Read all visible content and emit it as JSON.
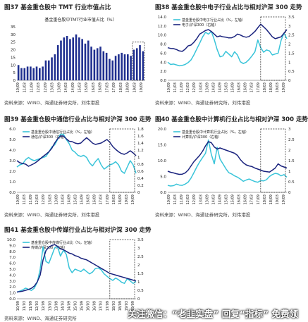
{
  "source_prefix": "资料来源：",
  "panels": [
    {
      "id": "p37",
      "title": "图37 基金重仓股中 TMT 行业市值占比",
      "source": "WIND、海通证券研究所，刘伟港投",
      "colors": {
        "bar": "#1f2f8f"
      },
      "chart_data": {
        "type": "bar",
        "legend": [
          "基金重仓股中TMT行业市值占比（%）"
        ],
        "legend_position": "top",
        "ylim": [
          0,
          35
        ],
        "yticks": [
          0,
          5,
          10,
          15,
          20,
          25,
          30,
          35
        ],
        "categories_labels": [
          "10/09",
          "11/03",
          "11/09",
          "12/03",
          "12/09",
          "13/03",
          "13/09",
          "14/03",
          "14/09",
          "15/03",
          "15/09",
          "16/03",
          "16/09",
          "17/03",
          "17/09",
          "18/03",
          "18/09",
          "19/03",
          "19/09"
        ],
        "values": [
          10,
          8,
          8,
          9,
          9,
          8,
          9,
          8,
          9,
          13,
          13,
          15,
          17,
          23,
          26,
          28,
          29,
          27,
          28,
          30,
          28,
          27,
          24,
          26,
          22,
          20,
          21,
          22,
          19,
          18,
          14,
          13,
          16,
          17,
          18,
          17,
          17,
          16,
          20,
          21,
          23,
          19
        ]
      }
    },
    {
      "id": "p38",
      "title": "图38 基金重仓股中电子行业占比与相对沪深 300 走势",
      "source": "WIND、海通证券研究所，刘伟港投",
      "colors": {
        "s1": "#39c4d9",
        "s2": "#1a237e"
      },
      "chart_data": {
        "type": "line",
        "legend": [
          "基金重仓股中电子行业占比（%，左轴）",
          "电子/沪深300（右轴）"
        ],
        "legend_position": "top-left",
        "ylim_left": [
          0,
          14
        ],
        "yticks_left": [
          0.0,
          2.0,
          4.0,
          6.0,
          8.0,
          10.0,
          12.0,
          14.0
        ],
        "ylim_right": [
          0,
          3.5
        ],
        "yticks_right": [
          0,
          0.5,
          1,
          1.5,
          2,
          2.5,
          3,
          3.5
        ],
        "x_labels": [
          "10/09",
          "11/03",
          "11/09",
          "12/03",
          "12/09",
          "13/03",
          "13/09",
          "14/03",
          "14/09",
          "15/03",
          "15/09",
          "16/03",
          "16/09",
          "17/03",
          "17/09",
          "18/03",
          "18/09",
          "19/03",
          "19/09"
        ],
        "series": [
          {
            "name": "基金重仓股中电子行业占比（%，左轴）",
            "axis": "left",
            "values": [
              4.0,
              3.5,
              3.6,
              3.4,
              3.2,
              3.3,
              3.5,
              3.9,
              4.5,
              5.6,
              6.9,
              8.2,
              9.6,
              10.6,
              10.2,
              10.8,
              9.0,
              6.8,
              5.2,
              5.4,
              6.4,
              5.8,
              5.2,
              6.3,
              5.6,
              4.1,
              3.7,
              4.0,
              4.6,
              5.4,
              6.3,
              8.9,
              7.2,
              6.2,
              6.7,
              6.5,
              5.6,
              5.8,
              6.0,
              8.8,
              10.4,
              9.2
            ]
          },
          {
            "name": "电子/沪深300（右轴）",
            "axis": "right",
            "values": [
              1.8,
              1.76,
              1.75,
              1.7,
              1.62,
              1.6,
              1.72,
              1.9,
              1.95,
              2.1,
              2.3,
              2.55,
              2.65,
              2.75,
              2.8,
              2.7,
              2.55,
              2.4,
              2.45,
              2.4,
              2.38,
              2.34,
              2.35,
              2.42,
              2.55,
              2.5,
              2.42,
              2.38,
              2.42,
              2.55,
              2.7,
              2.9,
              3.1,
              2.95,
              2.8,
              2.6,
              2.4,
              2.3,
              2.35,
              2.4,
              2.6,
              2.8
            ]
          }
        ]
      }
    },
    {
      "id": "p39",
      "title": "图39 基金重仓股中通信行业占比与相对沪深 300 走势",
      "source": "WIND、海通证券研究所，刘伟港投",
      "colors": {
        "s1": "#39c4d9",
        "s2": "#1a237e"
      },
      "chart_data": {
        "type": "line",
        "legend": [
          "基金重仓股中通信行业占比（%，左轴）",
          "通信/沪深300（右轴）"
        ],
        "legend_position": "top-left",
        "ylim_left": [
          0,
          6.0
        ],
        "yticks_left": [
          0.0,
          1.0,
          2.0,
          3.0,
          4.0,
          5.0,
          6.0
        ],
        "ylim_right": [
          0,
          1.8
        ],
        "yticks_right": [
          0,
          0.2,
          0.4,
          0.6,
          0.8,
          1,
          1.2,
          1.4,
          1.6,
          1.8
        ],
        "x_labels": [
          "10/09",
          "11/03",
          "11/09",
          "12/03",
          "12/09",
          "13/03",
          "13/09",
          "14/03",
          "14/09",
          "15/03",
          "15/09",
          "16/03",
          "16/09",
          "17/03",
          "17/09",
          "18/03",
          "18/09",
          "19/03",
          "19/09"
        ],
        "series": [
          {
            "name": "基金重仓股中通信行业占比（%，左轴）",
            "axis": "left",
            "values": [
              2.4,
              2.6,
              2.7,
              3.1,
              3.3,
              3.1,
              3.0,
              3.1,
              3.2,
              3.3,
              3.4,
              3.8,
              4.3,
              4.5,
              5.0,
              5.5,
              5.5,
              5.0,
              4.6,
              4.0,
              3.8,
              3.5,
              3.4,
              3.5,
              3.3,
              2.8,
              2.5,
              2.9,
              3.2,
              2.6,
              2.2,
              2.4,
              2.6,
              2.7,
              2.9,
              2.6,
              2.0,
              1.8,
              2.4,
              3.0,
              2.6,
              1.8
            ]
          },
          {
            "name": "通信/沪深300（右轴）",
            "axis": "right",
            "values": [
              0.9,
              0.84,
              0.82,
              0.8,
              0.74,
              0.78,
              0.82,
              0.88,
              0.95,
              1.02,
              1.08,
              1.15,
              1.25,
              1.4,
              1.52,
              1.6,
              1.6,
              1.52,
              1.45,
              1.44,
              1.4,
              1.38,
              1.4,
              1.48,
              1.55,
              1.48,
              1.4,
              1.36,
              1.38,
              1.4,
              1.45,
              1.5,
              1.42,
              1.3,
              1.22,
              1.15,
              1.1,
              1.08,
              1.12,
              1.18,
              1.12,
              1.04
            ]
          }
        ]
      }
    },
    {
      "id": "p40",
      "title": "图40 基金重仓股中计算机行业占比与相对沪深 300 走势",
      "source": "WIND、海通证券研究所，刘伟港投",
      "colors": {
        "s1": "#39c4d9",
        "s2": "#1a237e"
      },
      "chart_data": {
        "type": "line",
        "legend": [
          "基金重仓股中计算机行业占比（%，左轴）",
          "计算机/沪深300（右轴）"
        ],
        "legend_position": "top-left",
        "ylim_left": [
          0,
          20.0
        ],
        "yticks_left": [
          0.0,
          5.0,
          10.0,
          15.0,
          20.0
        ],
        "ylim_right": [
          0,
          3.0
        ],
        "yticks_right": [
          0,
          0.5,
          1,
          1.5,
          2,
          2.5,
          3
        ],
        "x_labels": [
          "10/09",
          "11/03",
          "11/09",
          "12/03",
          "12/09",
          "13/03",
          "13/09",
          "14/03",
          "14/09",
          "15/03",
          "15/09",
          "16/03",
          "16/09",
          "17/03",
          "17/09",
          "18/03",
          "18/09",
          "19/03",
          "19/09"
        ],
        "series": [
          {
            "name": "基金重仓股中计算机行业占比（%，左轴）",
            "axis": "left",
            "values": [
              2.2,
              2.0,
              2.1,
              2.6,
              2.3,
              2.2,
              2.6,
              3.2,
              4.5,
              6.2,
              8.0,
              9.6,
              11.0,
              12.3,
              16.5,
              12.0,
              9.0,
              14.2,
              10.5,
              9.0,
              7.5,
              6.2,
              5.8,
              5.2,
              4.8,
              4.2,
              3.5,
              3.9,
              4.2,
              3.8,
              3.4,
              3.2,
              3.7,
              3.6,
              4.0,
              5.0,
              5.6,
              6.0,
              5.8,
              5.2,
              5.6,
              4.8
            ]
          },
          {
            "name": "计算机/沪深300（右轴）",
            "axis": "right",
            "values": [
              1.0,
              0.95,
              0.92,
              0.88,
              0.85,
              0.86,
              0.92,
              1.05,
              1.25,
              1.45,
              1.6,
              1.75,
              1.95,
              2.2,
              2.4,
              2.35,
              2.15,
              2.05,
              2.1,
              2.05,
              2.0,
              1.95,
              1.9,
              1.85,
              1.75,
              1.55,
              1.4,
              1.3,
              1.25,
              1.22,
              1.15,
              1.1,
              1.05,
              1.0,
              0.98,
              0.96,
              1.05,
              1.15,
              1.35,
              1.25,
              1.2,
              1.15
            ]
          }
        ]
      }
    },
    {
      "id": "p41",
      "title": "图41 基金重仓股中传媒行业占比与相对沪深 300 走势",
      "source": "WIND、海通证券研究所",
      "colors": {
        "s1": "#39c4d9",
        "s2": "#1a237e"
      },
      "chart_data": {
        "type": "line",
        "legend": [
          "基金重仓股中传媒行业占比（%，左轴）",
          "传媒/沪深300（右轴）"
        ],
        "legend_position": "top-left",
        "ylim_left": [
          0,
          10.0
        ],
        "yticks_left": [
          0.0,
          1.0,
          2.0,
          3.0,
          4.0,
          5.0,
          6.0,
          7.0,
          8.0,
          9.0,
          10.0
        ],
        "ylim_right": [
          0,
          3.5
        ],
        "yticks_right": [
          0,
          0.5,
          1,
          1.5,
          2,
          2.5,
          3,
          3.5
        ],
        "x_labels": [
          "10/09",
          "11/03",
          "11/09",
          "12/03",
          "12/09",
          "13/03",
          "13/09",
          "14/03",
          "14/09",
          "15/03",
          "15/09",
          "16/03",
          "16/09",
          "17/03",
          "17/09",
          "18/03",
          "18/09",
          "19/03",
          "19/09"
        ],
        "series": [
          {
            "name": "基金重仓股中传媒行业占比（%，左轴）",
            "axis": "left",
            "values": [
              1.1,
              1.3,
              1.5,
              1.8,
              1.6,
              1.4,
              1.8,
              2.8,
              5.0,
              8.8,
              6.3,
              6.0,
              7.3,
              8.6,
              8.8,
              7.2,
              8.2,
              7.5,
              5.2,
              4.4,
              5.0,
              4.8,
              4.6,
              5.0,
              4.6,
              4.2,
              4.5,
              5.1,
              5.2,
              4.9,
              4.2,
              3.8,
              3.4,
              3.1,
              3.5,
              3.2,
              2.8,
              2.6,
              3.4,
              3.0,
              2.6,
              2.9
            ]
          },
          {
            "name": "传媒/沪深300（右轴）",
            "axis": "right",
            "values": [
              0.4,
              0.42,
              0.45,
              0.5,
              0.55,
              0.62,
              0.75,
              1.0,
              1.4,
              2.3,
              2.85,
              3.05,
              3.15,
              3.2,
              3.1,
              2.95,
              2.9,
              2.8,
              2.7,
              2.65,
              2.55,
              2.5,
              2.4,
              2.35,
              2.3,
              2.2,
              2.1,
              2.0,
              1.9,
              1.8,
              1.7,
              1.6,
              1.5,
              1.45,
              1.4,
              1.35,
              1.3,
              1.25,
              1.2,
              1.15,
              1.1,
              1.05
            ]
          }
        ]
      }
    }
  ],
  "watermark": "关注微信：“老韭实盘” 回复“指标” 免费领"
}
